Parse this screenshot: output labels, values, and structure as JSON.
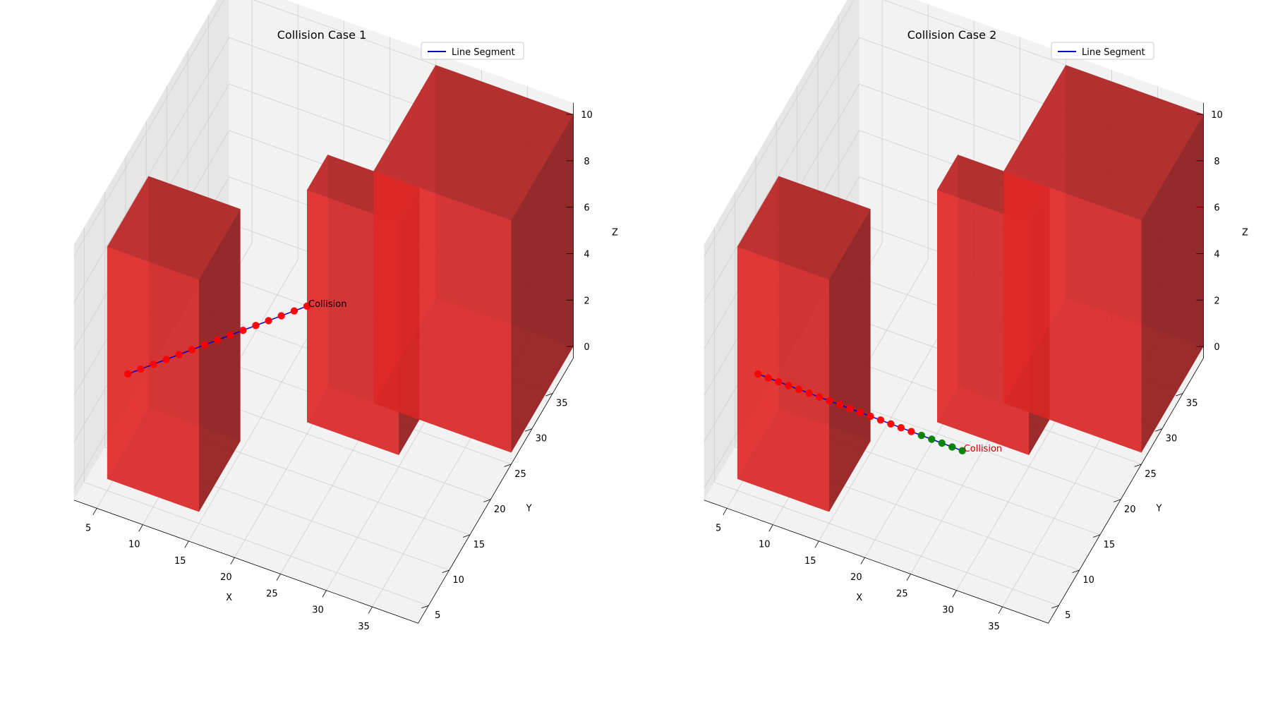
{
  "chart_data": [
    {
      "type": "scatter",
      "projection": "3d",
      "title": "Collision Case 1",
      "xlabel": "X",
      "ylabel": "Y",
      "zlabel": "Z",
      "x_ticks": [
        "5",
        "10",
        "15",
        "20",
        "25",
        "30",
        "35"
      ],
      "y_ticks": [
        "5",
        "10",
        "15",
        "20",
        "25",
        "30",
        "35"
      ],
      "z_ticks": [
        "0",
        "2",
        "4",
        "6",
        "8",
        "10"
      ],
      "grid": true,
      "legend": {
        "placement": "top-right",
        "entries": [
          "Line Segment"
        ]
      },
      "obstacles": [
        {
          "x": [
            5,
            15
          ],
          "y": [
            5,
            15
          ],
          "z": [
            0,
            10
          ],
          "color": "#e82a2a"
        },
        {
          "x": [
            20,
            30
          ],
          "y": [
            20,
            25
          ],
          "z": [
            0,
            10
          ],
          "color": "#e82a2a"
        },
        {
          "x": [
            25,
            40
          ],
          "y": [
            25,
            40
          ],
          "z": [
            0,
            10
          ],
          "color": "#e82a2a"
        }
      ],
      "line_points": {
        "start": [
          5,
          10,
          3
        ],
        "end": [
          20,
          20,
          5
        ],
        "count": 15,
        "colors": [
          "red",
          "red",
          "red",
          "red",
          "red",
          "red",
          "red",
          "red",
          "red",
          "red",
          "red",
          "red",
          "red",
          "red",
          "red"
        ]
      },
      "annotation": {
        "text": "Collision",
        "color": "#000000"
      }
    },
    {
      "type": "scatter",
      "projection": "3d",
      "title": "Collision Case 2",
      "xlabel": "X",
      "ylabel": "Y",
      "zlabel": "Z",
      "x_ticks": [
        "5",
        "10",
        "15",
        "20",
        "25",
        "30",
        "35"
      ],
      "y_ticks": [
        "5",
        "10",
        "15",
        "20",
        "25",
        "30",
        "35"
      ],
      "z_ticks": [
        "0",
        "2",
        "4",
        "6",
        "8",
        "10"
      ],
      "grid": true,
      "legend": {
        "placement": "top-right",
        "entries": [
          "Line Segment"
        ]
      },
      "obstacles": [
        {
          "x": [
            5,
            15
          ],
          "y": [
            5,
            15
          ],
          "z": [
            0,
            10
          ],
          "color": "#e82a2a"
        },
        {
          "x": [
            20,
            30
          ],
          "y": [
            20,
            25
          ],
          "z": [
            0,
            10
          ],
          "color": "#e82a2a"
        },
        {
          "x": [
            25,
            40
          ],
          "y": [
            25,
            40
          ],
          "z": [
            0,
            10
          ],
          "color": "#e82a2a"
        }
      ],
      "line_points": {
        "start": [
          5,
          10,
          3
        ],
        "end": [
          25,
          15,
          1
        ],
        "count": 21,
        "colors": [
          "red",
          "red",
          "red",
          "red",
          "red",
          "red",
          "red",
          "red",
          "red",
          "red",
          "red",
          "red",
          "red",
          "red",
          "red",
          "red",
          "green",
          "green",
          "green",
          "green",
          "green"
        ]
      },
      "annotation": {
        "text": "Collision",
        "color": "#cc0000"
      }
    }
  ],
  "colors": {
    "line": "#0000cc",
    "pane_light": "#f2f2f2",
    "pane_dark": "#e6e6e6",
    "grid": "#cfcfcf"
  }
}
